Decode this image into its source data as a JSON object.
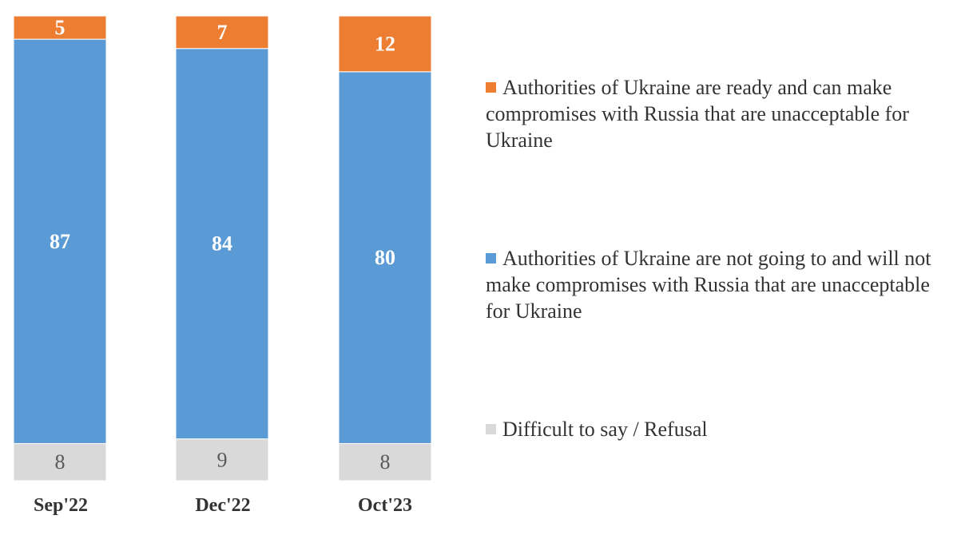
{
  "chart_data": {
    "type": "bar",
    "stacked": true,
    "categories": [
      "Sep'22",
      "Dec'22",
      "Oct'23"
    ],
    "series": [
      {
        "name": "Difficult to say / Refusal",
        "values": [
          8,
          9,
          8
        ],
        "color": "#d9d9d9",
        "label_color": "#595959",
        "label_weight": "normal"
      },
      {
        "name": "Authorities of Ukraine are not going to and will not make compromises with Russia that are unacceptable for Ukraine",
        "values": [
          87,
          84,
          80
        ],
        "color": "#5b9bd5",
        "label_color": "#ffffff",
        "label_weight": "bold"
      },
      {
        "name": "Authorities of Ukraine are ready and can make compromises with Russia that are unacceptable for Ukraine",
        "values": [
          5,
          7,
          12
        ],
        "color": "#ed7d31",
        "label_color": "#ffffff",
        "label_weight": "bold"
      }
    ],
    "ylim": [
      0,
      100
    ],
    "legend_position": "right",
    "grid": false
  },
  "legend": [
    {
      "text": "Authorities of Ukraine are ready and can make compromises with Russia that are unacceptable for Ukraine",
      "color": "#ed7d31"
    },
    {
      "text": "Authorities of Ukraine are not going to and will not make compromises with Russia that are unacceptable for Ukraine",
      "color": "#5b9bd5"
    },
    {
      "text": "Difficult to say / Refusal",
      "color": "#d9d9d9"
    }
  ]
}
